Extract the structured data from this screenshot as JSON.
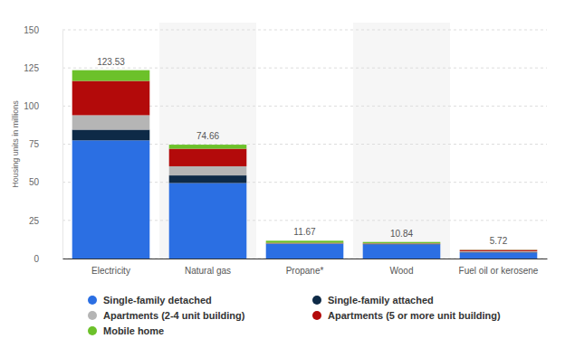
{
  "chart_data": {
    "type": "bar",
    "stacked": true,
    "y_label": "Housing units in millions",
    "categories": [
      "Electricity",
      "Natural gas",
      "Propane*",
      "Wood",
      "Fuel oil or kerosene"
    ],
    "series": [
      {
        "name": "Single-family detached",
        "color": "#2b6fe3",
        "values": [
          77.5,
          49.5,
          9.5,
          9.3,
          3.9
        ]
      },
      {
        "name": "Single-family attached",
        "color": "#0e2a47",
        "values": [
          7.0,
          5.0,
          0.3,
          0.3,
          0.3
        ]
      },
      {
        "name": "Apartments (2-4 unit building)",
        "color": "#b5b5b5",
        "values": [
          9.5,
          6.0,
          0.2,
          0.2,
          0.6
        ]
      },
      {
        "name": "Apartments (5 or more unit building)",
        "color": "#b30a0a",
        "values": [
          22.5,
          11.5,
          0.3,
          0.2,
          0.8
        ]
      },
      {
        "name": "Mobile home",
        "color": "#6cc12a",
        "values": [
          7.03,
          2.66,
          1.37,
          0.84,
          0.12
        ]
      }
    ],
    "totals": [
      123.53,
      74.66,
      11.67,
      10.84,
      5.72
    ],
    "ylim": [
      0,
      150
    ],
    "yticks": [
      0,
      25,
      50,
      75,
      100,
      125,
      150
    ],
    "grid": true,
    "legend": "bottom"
  }
}
